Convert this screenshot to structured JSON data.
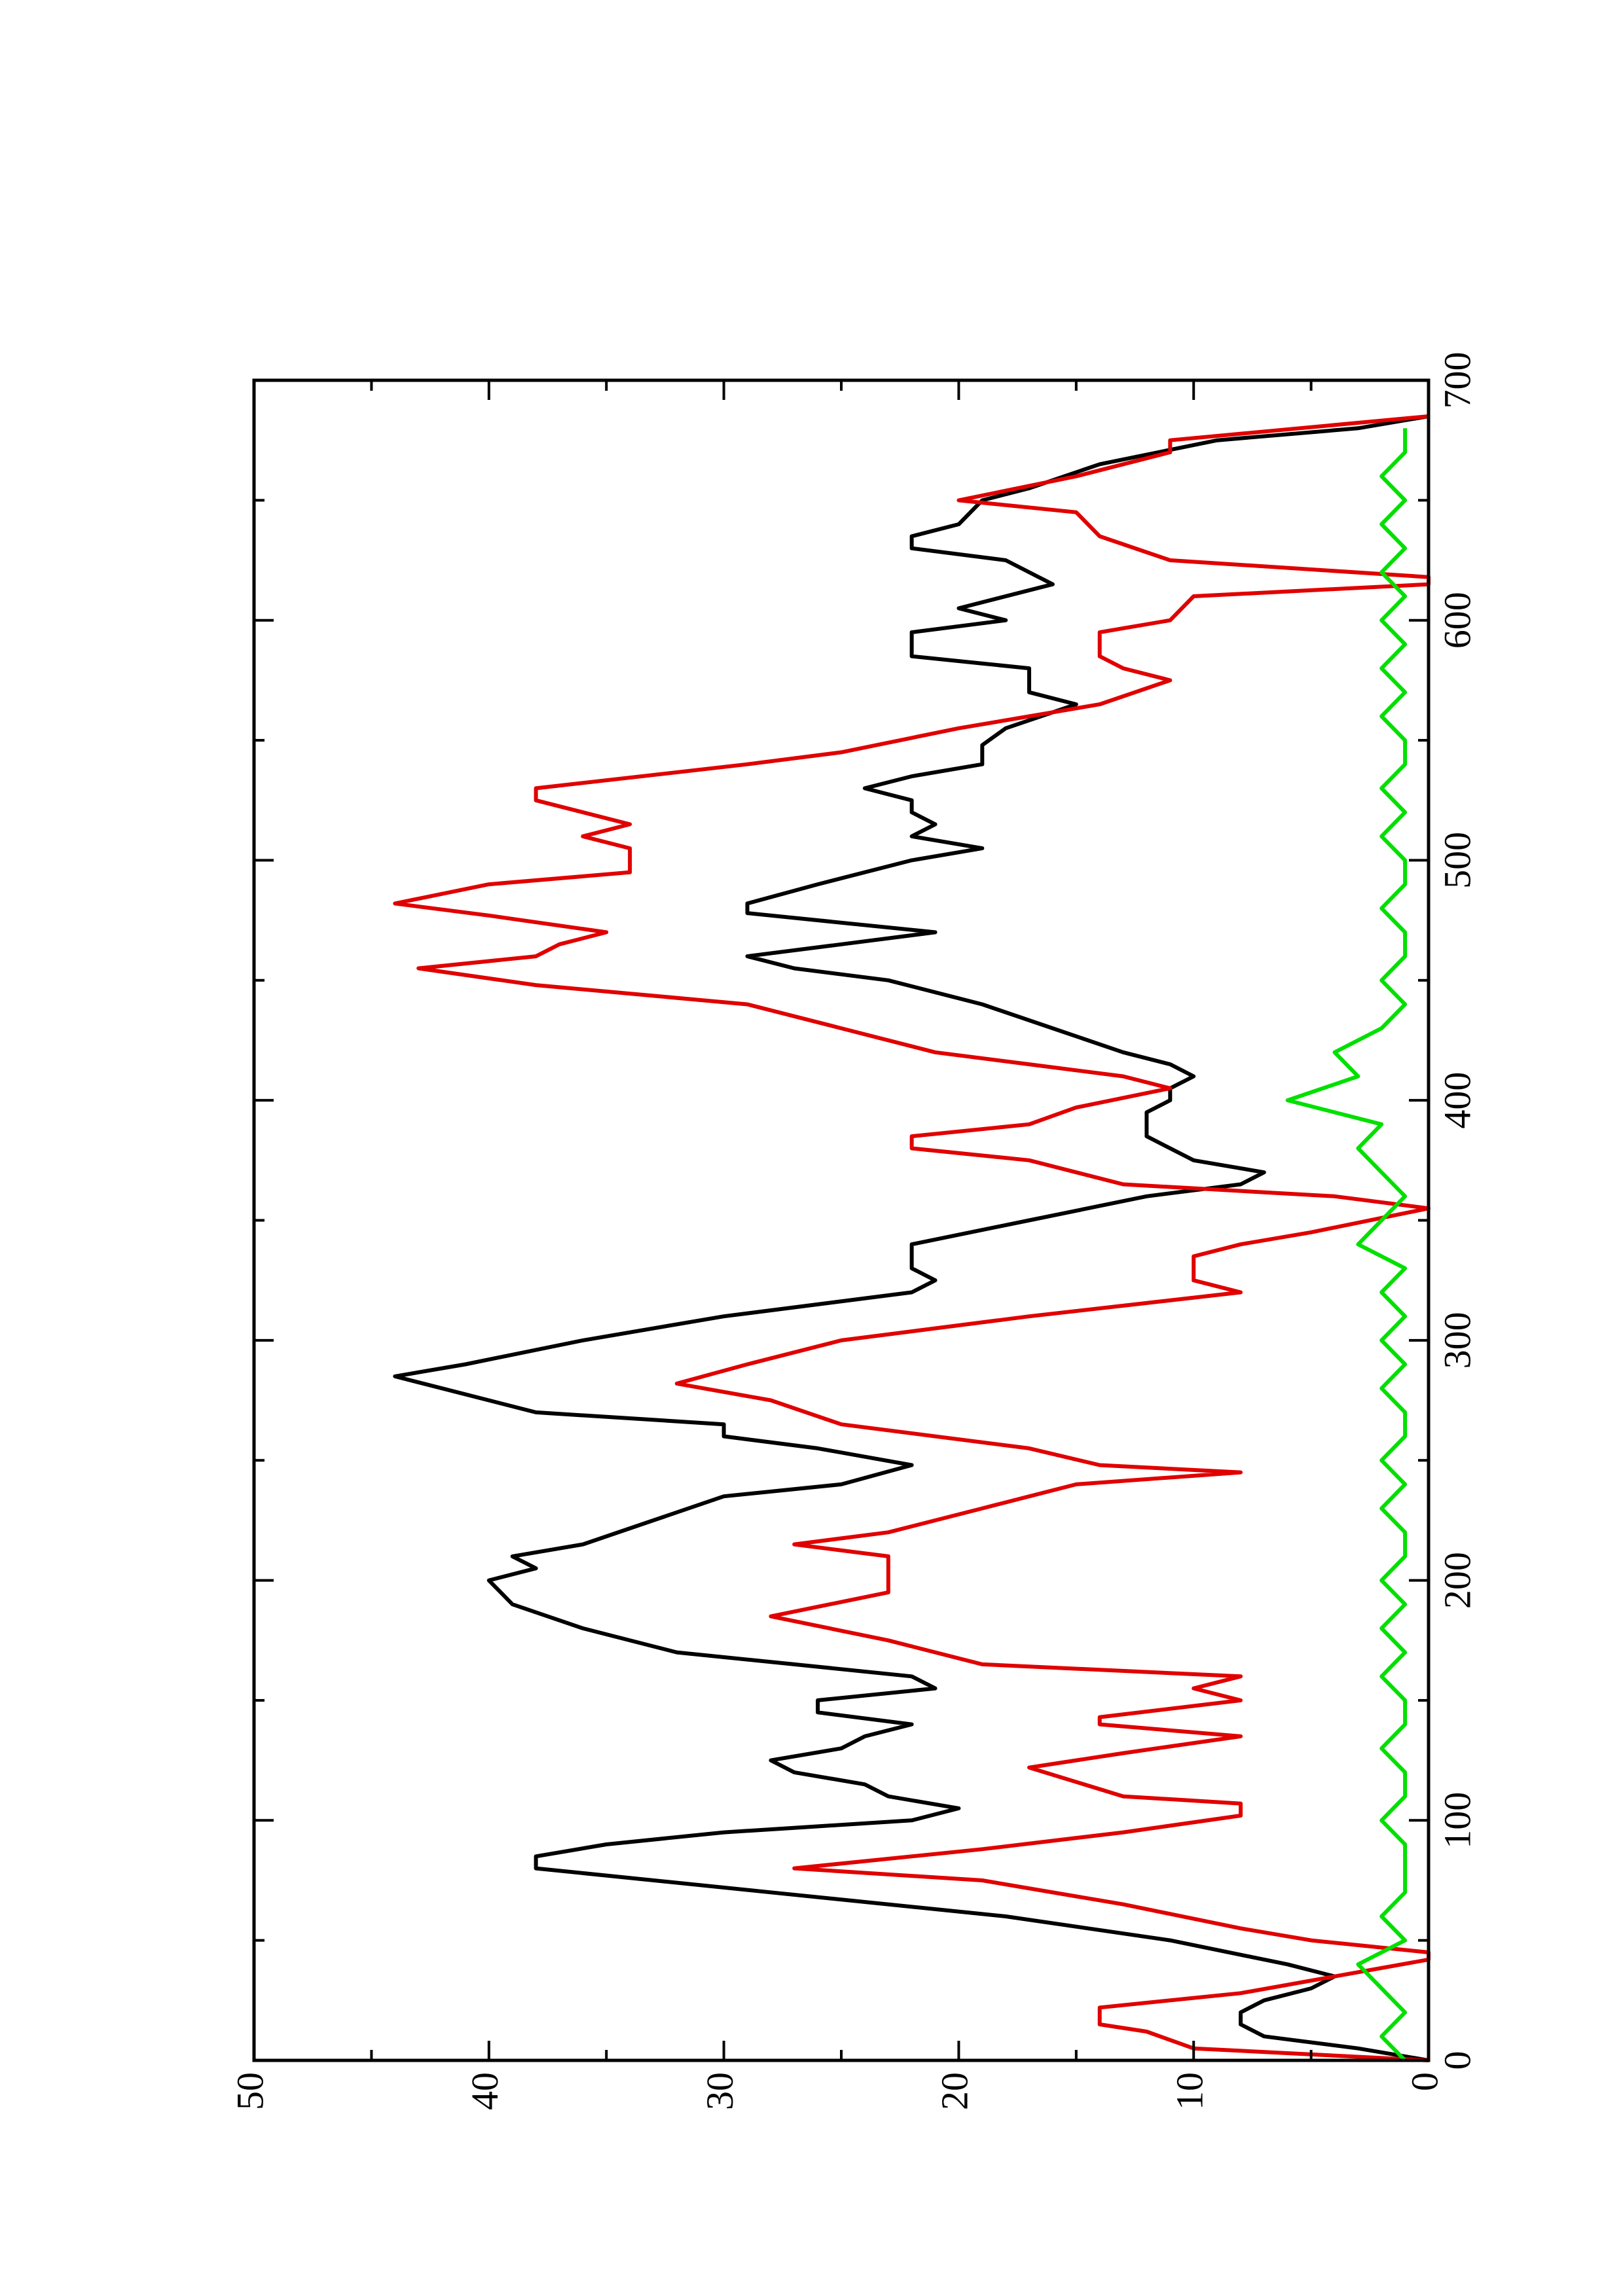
{
  "chart_data": {
    "type": "line",
    "orientation": "rotated",
    "xlim": [
      0,
      700
    ],
    "xticks": [
      0,
      100,
      200,
      300,
      400,
      500,
      600,
      700
    ],
    "xminorticks": [
      50,
      150,
      250,
      350,
      450,
      550,
      650
    ],
    "ylim": [
      0,
      50
    ],
    "yticks": [
      0,
      10,
      20,
      30,
      40,
      50
    ],
    "yminorticks": [
      5,
      15,
      25,
      35,
      45
    ],
    "series": [
      {
        "color": "#000000",
        "x": [
          0,
          5,
          10,
          15,
          20,
          25,
          30,
          35,
          40,
          50,
          60,
          70,
          80,
          85,
          90,
          95,
          100,
          105,
          110,
          115,
          120,
          125,
          130,
          135,
          140,
          145,
          150,
          155,
          160,
          165,
          170,
          180,
          190,
          200,
          205,
          210,
          215,
          225,
          235,
          240,
          248,
          255,
          260,
          265,
          270,
          280,
          285,
          290,
          300,
          310,
          320,
          325,
          330,
          340,
          350,
          360,
          365,
          370,
          375,
          385,
          395,
          400,
          405,
          410,
          415,
          420,
          430,
          440,
          450,
          455,
          460,
          465,
          470,
          478,
          482,
          490,
          500,
          505,
          510,
          515,
          520,
          525,
          530,
          535,
          540,
          548,
          555,
          565,
          570,
          580,
          585,
          595,
          600,
          605,
          615,
          625,
          630,
          635,
          640,
          650,
          655,
          665,
          675,
          680,
          685
        ],
        "values": [
          0,
          3,
          7,
          8,
          8,
          7,
          5,
          4,
          6,
          11,
          18,
          28,
          38,
          38,
          35,
          30,
          22,
          20,
          23,
          24,
          27,
          28,
          25,
          24,
          22,
          26,
          26,
          21,
          22,
          27,
          32,
          36,
          39,
          40,
          38,
          39,
          36,
          33,
          30,
          25,
          22,
          26,
          30,
          30,
          38,
          42,
          44,
          41,
          36,
          30,
          22,
          21,
          22,
          22,
          17,
          12,
          8,
          7,
          10,
          12,
          12,
          11,
          11,
          10,
          11,
          13,
          16,
          19,
          23,
          27,
          29,
          25,
          21,
          29,
          29,
          26,
          22,
          19,
          22,
          21,
          22,
          22,
          24,
          22,
          19,
          19,
          18,
          15,
          17,
          17,
          22,
          22,
          18,
          20,
          16,
          18,
          22,
          22,
          20,
          19,
          17,
          14,
          9,
          3,
          0
        ]
      },
      {
        "color": "#e00000",
        "x": [
          0,
          5,
          12,
          15,
          22,
          28,
          35,
          42,
          45,
          50,
          55,
          65,
          75,
          80,
          88,
          95,
          102,
          107,
          110,
          122,
          128,
          135,
          140,
          143,
          150,
          155,
          160,
          165,
          175,
          185,
          195,
          210,
          215,
          220,
          230,
          240,
          245,
          248,
          255,
          265,
          275,
          282,
          290,
          300,
          310,
          320,
          325,
          335,
          340,
          345,
          355,
          360,
          365,
          375,
          380,
          385,
          390,
          397,
          405,
          410,
          415,
          420,
          430,
          440,
          448,
          455,
          460,
          465,
          470,
          477,
          482,
          490,
          495,
          505,
          510,
          515,
          525,
          530,
          540,
          545,
          555,
          565,
          575,
          580,
          585,
          595,
          600,
          610,
          615,
          618,
          625,
          635,
          645,
          650,
          660,
          670,
          675,
          685
        ],
        "values": [
          0,
          10,
          12,
          14,
          14,
          8,
          4,
          0,
          0,
          5,
          8,
          13,
          19,
          27,
          19,
          13,
          8,
          8,
          13,
          17,
          13,
          8,
          14,
          14,
          8,
          10,
          8,
          19,
          23,
          28,
          23,
          23,
          27,
          23,
          19,
          15,
          8,
          14,
          17,
          25,
          28,
          32,
          29,
          25,
          17,
          8,
          10,
          10,
          8,
          5,
          0,
          4,
          13,
          17,
          22,
          22,
          17,
          15,
          11,
          13,
          17,
          21,
          25,
          29,
          38,
          43,
          38,
          37,
          35,
          40,
          44,
          40,
          34,
          34,
          36,
          34,
          38,
          38,
          29,
          25,
          20,
          14,
          11,
          13,
          14,
          14,
          11,
          10,
          0,
          0,
          11,
          14,
          15,
          20,
          15,
          11,
          11,
          0
        ]
      },
      {
        "color": "#00e000",
        "x": [
          0,
          10,
          20,
          30,
          40,
          50,
          60,
          70,
          80,
          90,
          100,
          110,
          120,
          130,
          140,
          150,
          160,
          170,
          180,
          190,
          200,
          210,
          220,
          230,
          240,
          250,
          260,
          270,
          280,
          290,
          300,
          310,
          320,
          330,
          340,
          350,
          360,
          370,
          380,
          390,
          400,
          410,
          420,
          430,
          440,
          450,
          460,
          470,
          480,
          490,
          500,
          510,
          520,
          530,
          540,
          550,
          560,
          570,
          580,
          590,
          600,
          610,
          620,
          630,
          640,
          650,
          660,
          670,
          680
        ],
        "values": [
          1,
          2,
          1,
          2,
          3,
          1,
          2,
          1,
          1,
          1,
          2,
          1,
          1,
          2,
          1,
          1,
          2,
          1,
          2,
          1,
          2,
          1,
          1,
          2,
          1,
          2,
          1,
          1,
          2,
          1,
          2,
          1,
          2,
          1,
          3,
          2,
          1,
          2,
          3,
          2,
          6,
          3,
          4,
          2,
          1,
          2,
          1,
          1,
          2,
          1,
          1,
          2,
          1,
          2,
          1,
          1,
          2,
          1,
          2,
          1,
          2,
          1,
          2,
          1,
          2,
          1,
          2,
          1,
          1
        ]
      }
    ]
  }
}
